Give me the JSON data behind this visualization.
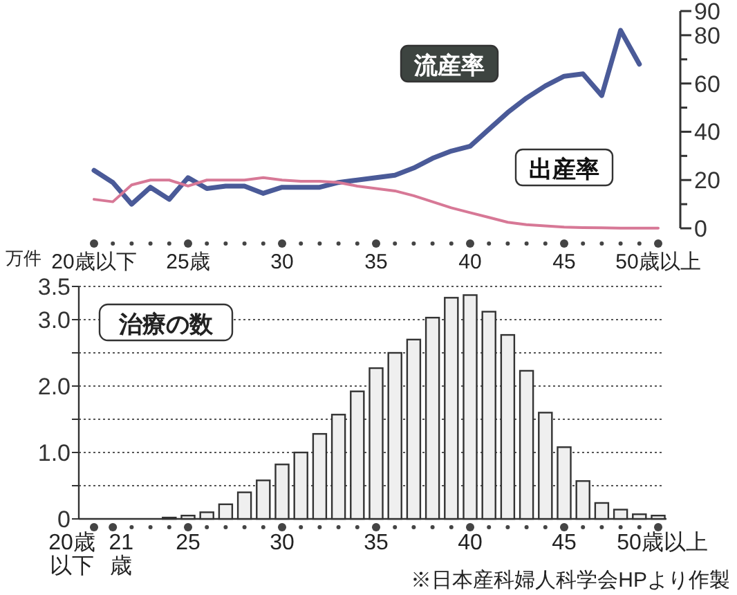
{
  "chart_data": [
    {
      "type": "line",
      "categories": [
        "20歳以下",
        null,
        null,
        null,
        null,
        "25歳",
        null,
        null,
        null,
        null,
        "30",
        null,
        null,
        null,
        null,
        "35",
        null,
        null,
        null,
        null,
        "40",
        null,
        null,
        null,
        null,
        "45",
        null,
        null,
        null,
        null,
        "50歳以上"
      ],
      "series": [
        {
          "name": "流産率",
          "color": "#4a5a98",
          "values": [
            24,
            19,
            10,
            17,
            12,
            21,
            16.5,
            17.5,
            17.5,
            14.5,
            17,
            17,
            17,
            19,
            20,
            21,
            22,
            25,
            29,
            32,
            34,
            41,
            48,
            54,
            59,
            63,
            64,
            55,
            82,
            68,
            null
          ]
        },
        {
          "name": "出産率",
          "color": "#d77896",
          "values": [
            12,
            11,
            18,
            20,
            20,
            17.5,
            20,
            20,
            20,
            21,
            20,
            19.5,
            19.5,
            19,
            17.5,
            16.5,
            15.5,
            13.5,
            11,
            8.5,
            6.5,
            4.5,
            2.5,
            1.5,
            1,
            0.5,
            0.3,
            0.2,
            0.1,
            0.1,
            0.1
          ]
        }
      ],
      "ylim": [
        0,
        90
      ],
      "yticks": [
        0,
        {
          "value": 10,
          "label": null
        },
        20,
        {
          "value": 30,
          "label": null
        },
        40,
        {
          "value": 50,
          "label": null
        },
        60,
        {
          "value": 70,
          "label": null
        },
        80,
        90
      ],
      "grid": false,
      "line_style": "solid",
      "marker": "none"
    },
    {
      "type": "bar",
      "title": "治療の数",
      "ylabel": "万件",
      "categories": [
        "20歳以下",
        "21歳",
        null,
        null,
        null,
        "25",
        null,
        null,
        null,
        null,
        "30",
        null,
        null,
        null,
        null,
        "35",
        null,
        null,
        null,
        null,
        "40",
        null,
        null,
        null,
        null,
        "45",
        null,
        null,
        null,
        null,
        "50歳以上"
      ],
      "values": [
        0,
        0,
        0,
        0,
        0.02,
        0.05,
        0.1,
        0.22,
        0.4,
        0.58,
        0.82,
        1.0,
        1.28,
        1.57,
        1.92,
        2.27,
        2.5,
        2.7,
        3.03,
        3.33,
        3.37,
        3.12,
        2.77,
        2.23,
        1.6,
        1.08,
        0.57,
        0.24,
        0.14,
        0.07,
        0.05
      ],
      "color": "#efefef",
      "ylim": [
        0,
        3.5
      ],
      "yticks": [
        0,
        {
          "value": 0.5,
          "label": null
        },
        {
          "value": 1,
          "label": "1.0"
        },
        {
          "value": 1.5,
          "label": null
        },
        {
          "value": 2,
          "label": "2.0"
        },
        {
          "value": 2.5,
          "label": null
        },
        {
          "value": 3,
          "label": "3.0"
        },
        3.5
      ],
      "grid": "y",
      "annotations": [
        "※日本産科婦人科学会HPより作製"
      ]
    }
  ]
}
